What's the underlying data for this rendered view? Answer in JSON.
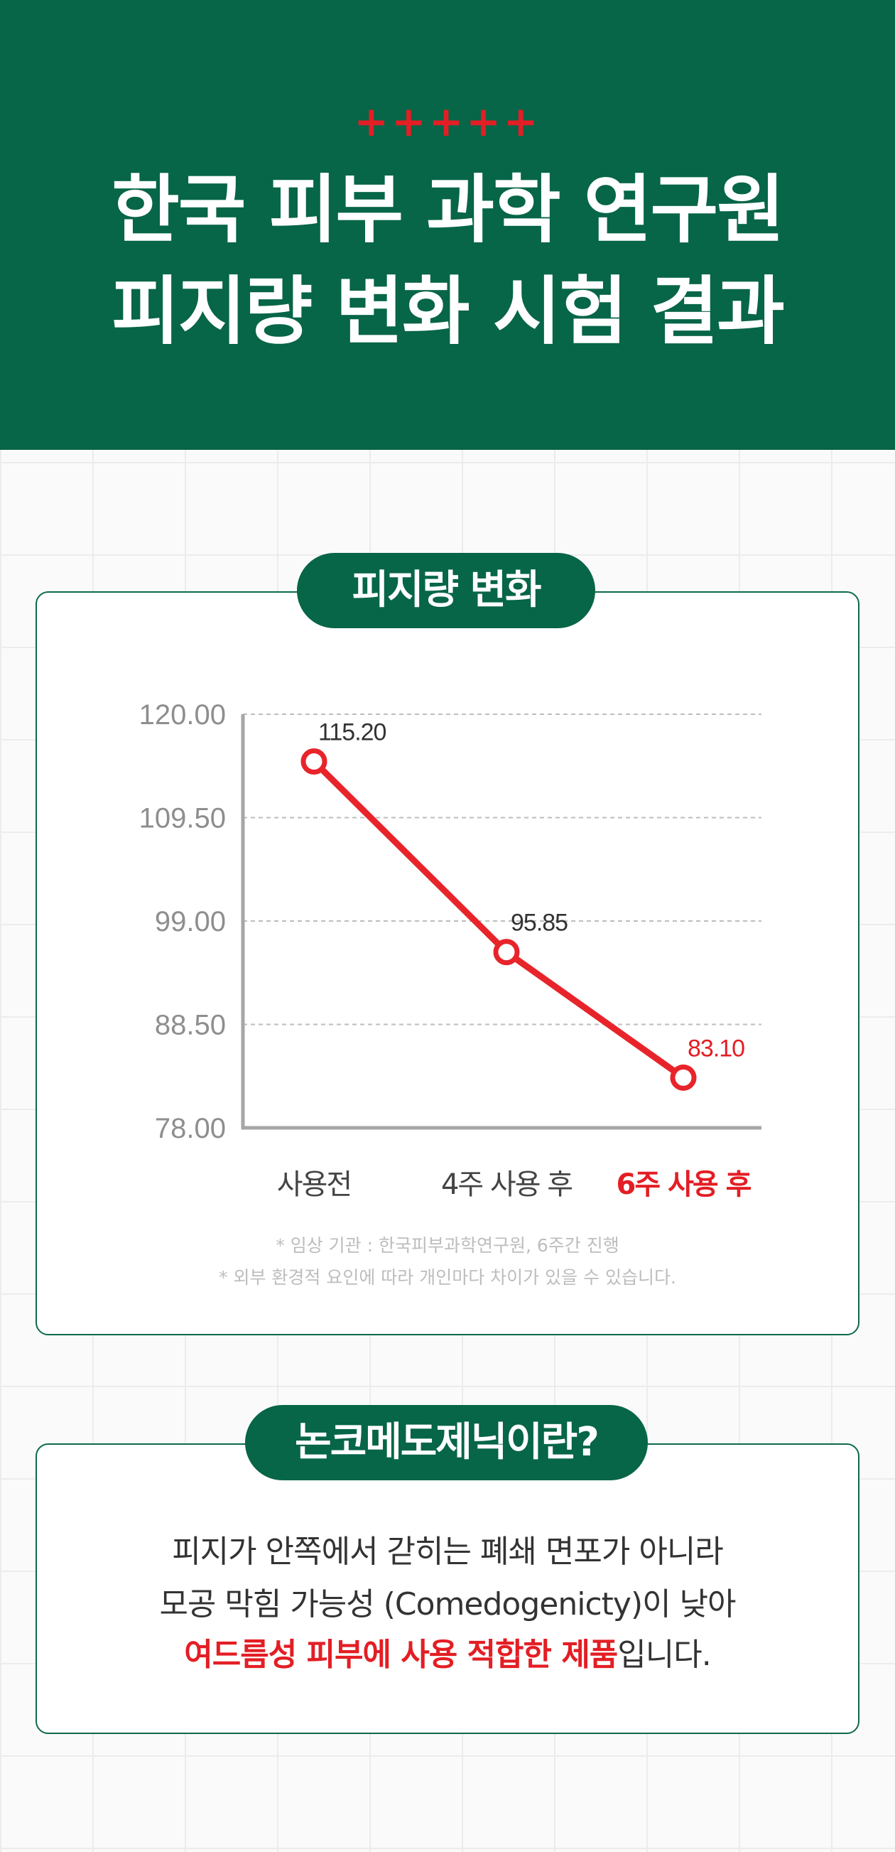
{
  "header": {
    "crosses": "+++++",
    "title_line1": "한국 피부 과학 연구원",
    "title_line2": "피지량 변화 시험 결과"
  },
  "section1": {
    "label": "피지량 변화",
    "notes": [
      "* 임상 기관 : 한국피부과학연구원, 6주간 진행",
      "* 외부 환경적 요인에 따라 개인마다 차이가 있을 수 있습니다."
    ]
  },
  "chart_data": {
    "type": "line",
    "categories": [
      "사용전",
      "4주 사용 후",
      "6주 사용 후"
    ],
    "values": [
      115.2,
      95.85,
      83.1
    ],
    "value_labels": [
      "115.20",
      "95.85",
      "83.10"
    ],
    "ylim": [
      78.0,
      120.0
    ],
    "yticks": [
      "120.00",
      "109.50",
      "99.00",
      "88.50",
      "78.00"
    ],
    "title": "",
    "xlabel": "",
    "ylabel": "",
    "grid": "dashed horizontal",
    "highlight_index": 2,
    "colors": {
      "line": "#e8242b",
      "axis": "#a6a6a6",
      "grid": "#bdbdbd",
      "tick_text": "#8e8e8e",
      "label_text": "#333333",
      "highlight": "#e31e24"
    }
  },
  "section2": {
    "label": "논코메도제닉이란?",
    "line1": "피지가 안쪽에서 갇히는 폐쇄 면포가 아니라",
    "line2": "모공 막힘 가능성 (Comedogenicty)이 낮아",
    "line3_highlight": "여드름성 피부에 사용 적합한 제품",
    "line3_rest": "입니다."
  },
  "colors": {
    "brand_green": "#076548",
    "accent_red": "#e31e24"
  }
}
